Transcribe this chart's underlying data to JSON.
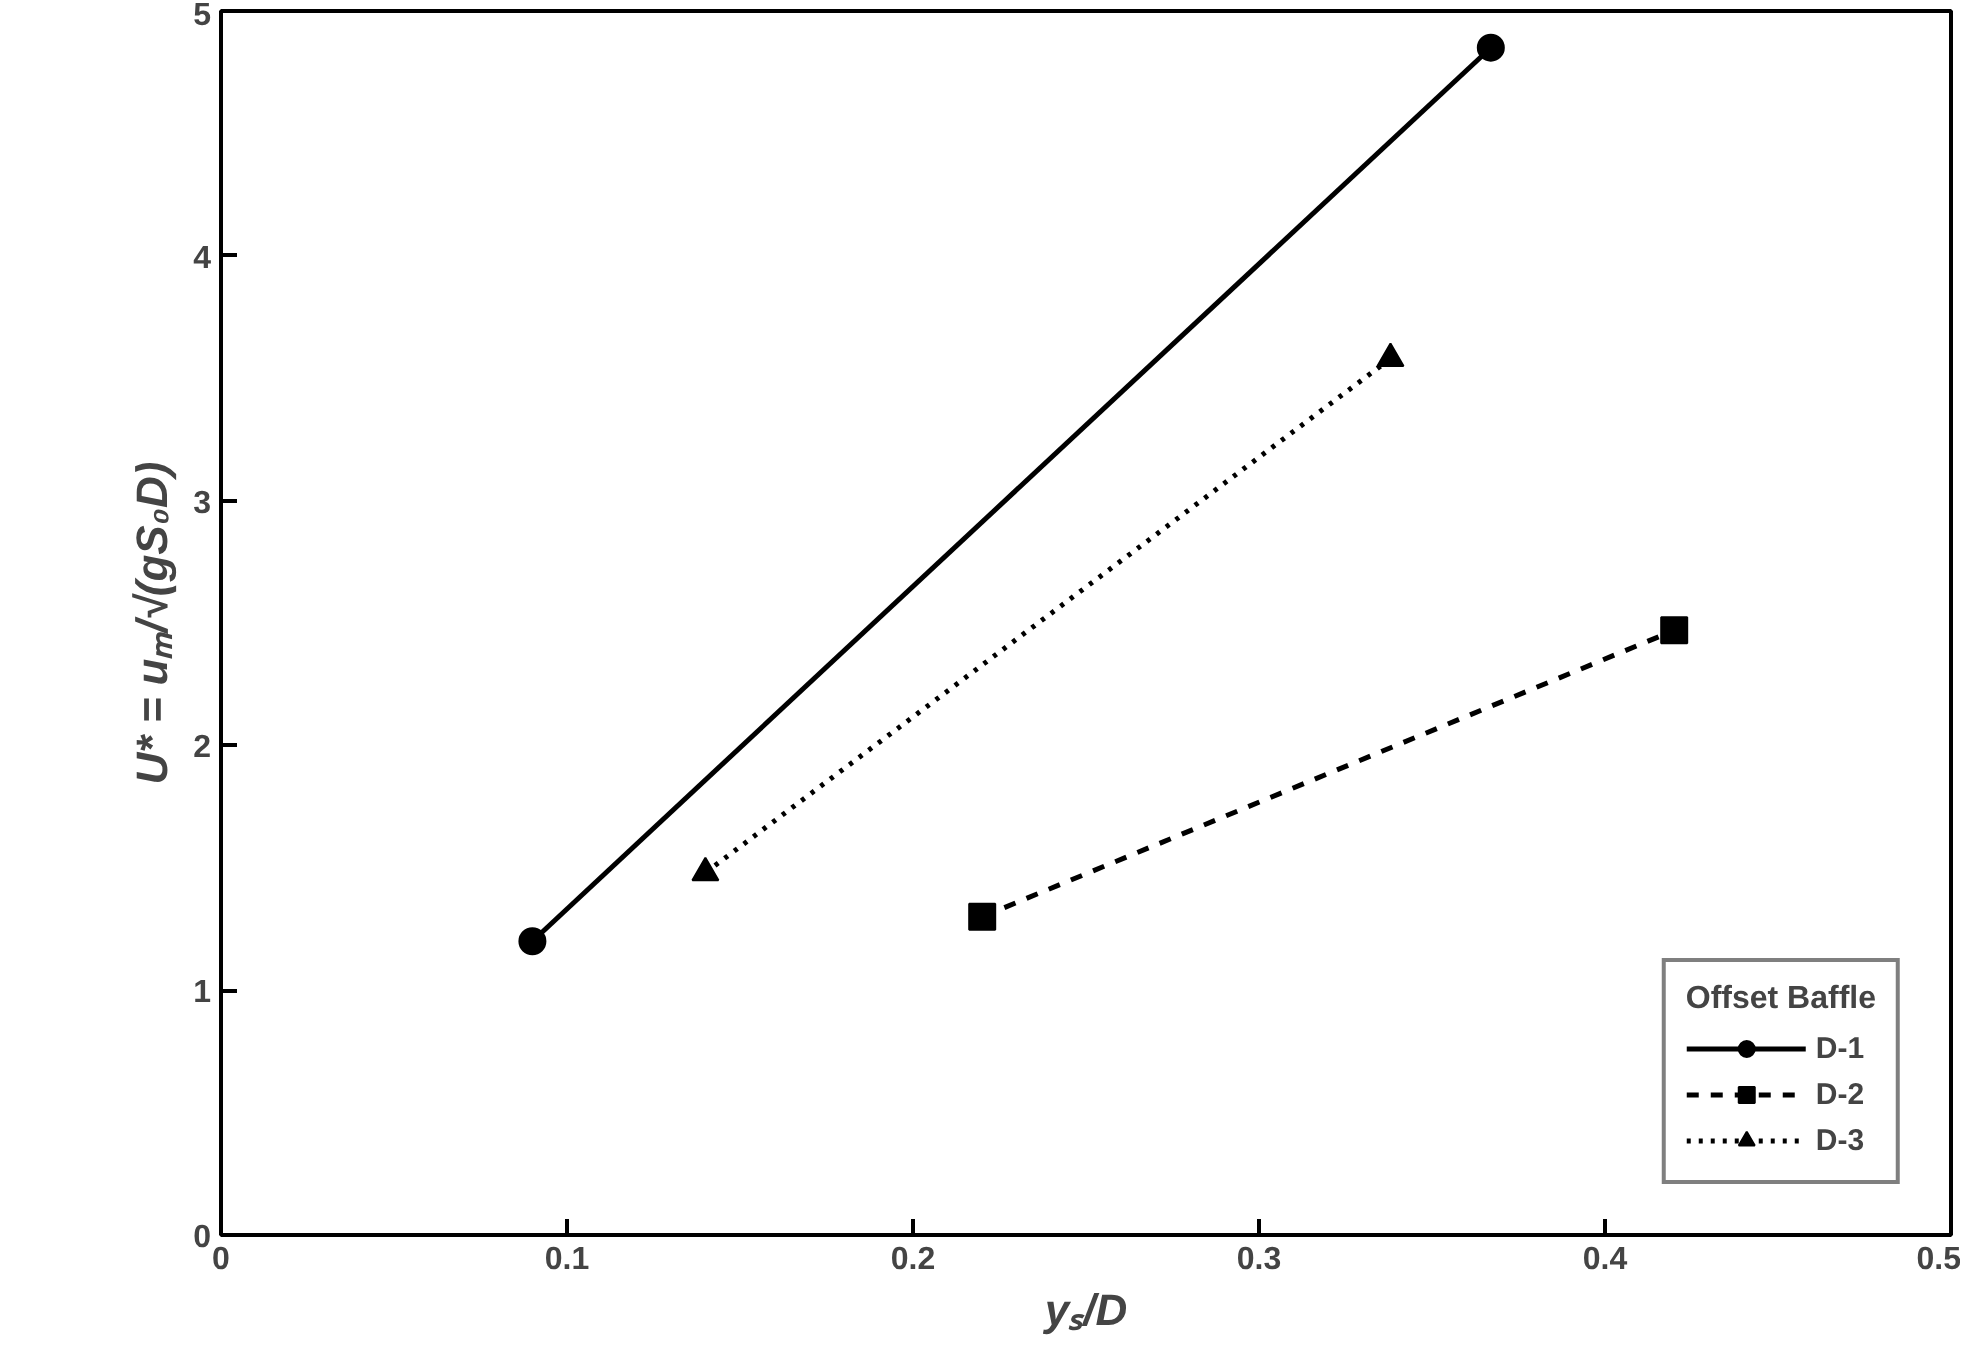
{
  "chart_data": {
    "type": "line",
    "xlabel": "yₛ/D",
    "ylabel": "U* = uₘ/√(gS₀D)",
    "legend_title": "Offset Baffle",
    "legend": "bottom right",
    "grid": false,
    "xlim": [
      0,
      0.5
    ],
    "xticks": [
      0,
      0.1,
      0.2,
      0.3,
      0.4,
      0.5
    ],
    "ylim": [
      0,
      5
    ],
    "yticks": [
      0,
      1,
      2,
      3,
      4,
      5
    ],
    "series": [
      {
        "name": "D-1",
        "color": "#000000",
        "x": [
          0.09,
          0.367
        ],
        "values": [
          1.2,
          4.85
        ],
        "marker": "circle",
        "line_style": "solid"
      },
      {
        "name": "D-2",
        "color": "#000000",
        "x": [
          0.22,
          0.42
        ],
        "values": [
          1.3,
          2.47
        ],
        "marker": "square",
        "line_style": "dashed"
      },
      {
        "name": "D-3",
        "color": "#000000",
        "x": [
          0.14,
          0.338
        ],
        "values": [
          1.48,
          3.58
        ],
        "marker": "triangle",
        "line_style": "dotted"
      }
    ]
  }
}
